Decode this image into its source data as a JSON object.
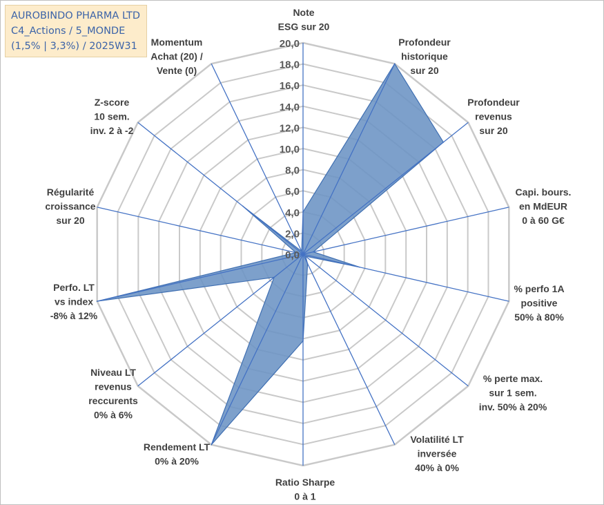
{
  "title_box": {
    "line1": "AUROBINDO PHARMA LTD",
    "line2": "C4_Actions / 5_MONDE",
    "line3": "(1,5% | 3,3%) / 2025W31"
  },
  "colors": {
    "fill": "#6b93c4",
    "stroke": "#3f6fb2",
    "grid": "#c9c9c9",
    "spoke": "#4472c4",
    "title_bg": "#fdeccb",
    "title_text": "#3b63a8"
  },
  "chart_data": {
    "type": "radar",
    "title": "",
    "rlim": [
      0,
      20
    ],
    "tick_labels": [
      "0,0",
      "2,0",
      "4,0",
      "6,0",
      "8,0",
      "10,0",
      "12,0",
      "14,0",
      "16,0",
      "18,0",
      "20,0"
    ],
    "grid": true,
    "axes": [
      {
        "lines": [
          "Note",
          "ESG sur 20"
        ]
      },
      {
        "lines": [
          "Profondeur",
          "historique",
          "sur 20"
        ]
      },
      {
        "lines": [
          "Profondeur",
          "revenus",
          "sur 20"
        ]
      },
      {
        "lines": [
          "Capi. bours.",
          "en MdEUR",
          "0 à 60 G€"
        ]
      },
      {
        "lines": [
          "% perfo 1A",
          "positive",
          "50% à 80%"
        ]
      },
      {
        "lines": [
          "% perte max.",
          "sur 1 sem.",
          "inv. 50% à 20%"
        ]
      },
      {
        "lines": [
          "Volatilité LT",
          "inversée",
          "40% à 0%"
        ]
      },
      {
        "lines": [
          "Ratio Sharpe",
          "0 à 1"
        ]
      },
      {
        "lines": [
          "Rendement LT",
          "0% à 20%"
        ]
      },
      {
        "lines": [
          "Niveau LT",
          "revenus",
          "reccurents",
          "0% à 6%"
        ]
      },
      {
        "lines": [
          "Perfo. LT",
          "vs index",
          "-8% à 12%"
        ]
      },
      {
        "lines": [
          "Régularité",
          "croissance",
          "sur 20"
        ]
      },
      {
        "lines": [
          "Z-score",
          "10 sem.",
          "inv. 2 à -2"
        ]
      },
      {
        "lines": [
          "Momentum",
          "Achat (20) /",
          "Vente (0)"
        ]
      }
    ],
    "series": [
      {
        "values": [
          4.0,
          20.0,
          17.0,
          1.0,
          5.5,
          0.3,
          1.0,
          8.2,
          20.0,
          3.5,
          20.0,
          0.7,
          7.3,
          0.3
        ]
      }
    ]
  }
}
